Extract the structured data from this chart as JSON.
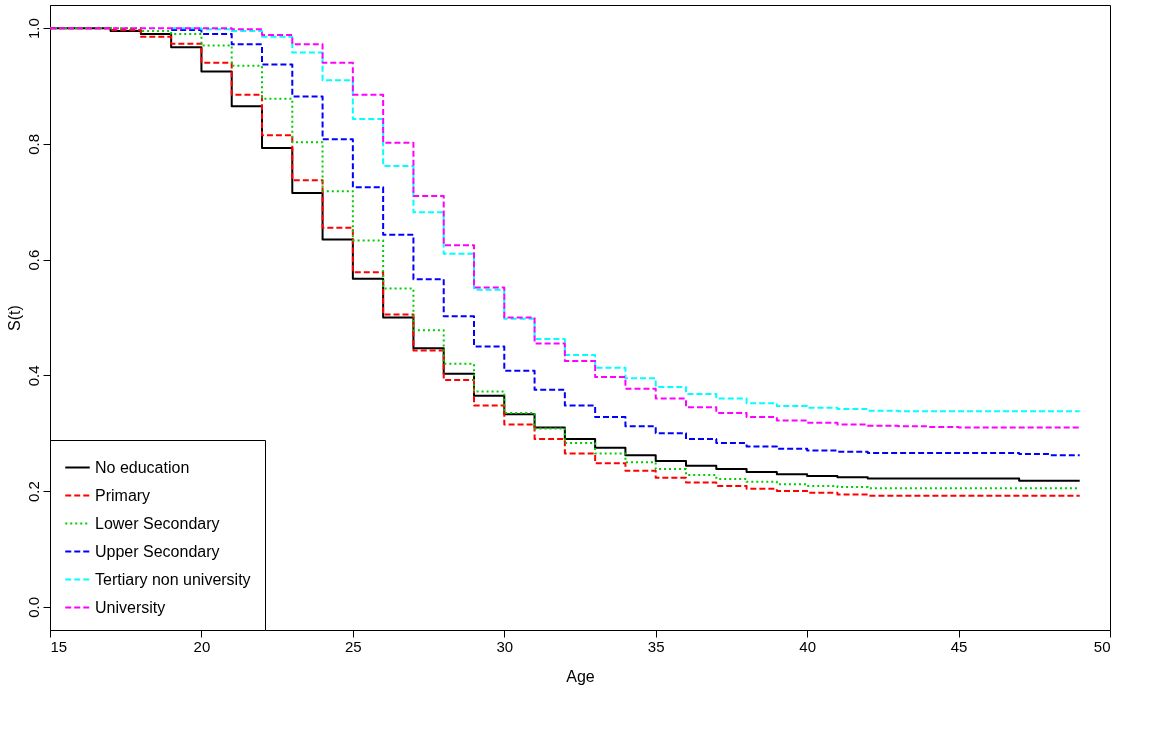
{
  "chart_data": {
    "type": "step",
    "xlabel": "Age",
    "ylabel": "S(t)",
    "x": [
      15,
      16,
      17,
      18,
      19,
      20,
      21,
      22,
      23,
      24,
      25,
      26,
      27,
      28,
      29,
      30,
      31,
      32,
      33,
      34,
      35,
      36,
      37,
      38,
      39,
      40,
      41,
      42,
      43,
      44,
      45,
      46,
      47,
      48,
      49
    ],
    "xlim": [
      15,
      50
    ],
    "xticks": [
      15,
      20,
      25,
      30,
      35,
      40,
      45,
      50
    ],
    "ylim": [
      -0.04,
      1.04
    ],
    "yticks": [
      {
        "value": 0,
        "label": "0.0"
      },
      0.2,
      0.4,
      0.6,
      0.8,
      {
        "value": 1,
        "label": "1.0"
      }
    ],
    "grid": false,
    "legend": "bottom left",
    "series": [
      {
        "name": "No education",
        "color": "#000000",
        "line_style": "solid",
        "values": [
          1,
          1,
          0.995,
          0.99,
          0.967,
          0.925,
          0.865,
          0.793,
          0.715,
          0.635,
          0.567,
          0.5,
          0.447,
          0.403,
          0.365,
          0.333,
          0.31,
          0.29,
          0.275,
          0.262,
          0.252,
          0.244,
          0.238,
          0.233,
          0.229,
          0.226,
          0.224,
          0.222,
          0.222,
          0.222,
          0.222,
          0.222,
          0.218,
          0.218,
          0.218
        ]
      },
      {
        "name": "Primary",
        "color": "#ff0000",
        "line_style": "dashed",
        "values": [
          1,
          1,
          0.997,
          0.985,
          0.973,
          0.94,
          0.885,
          0.815,
          0.737,
          0.655,
          0.578,
          0.505,
          0.443,
          0.392,
          0.348,
          0.315,
          0.29,
          0.265,
          0.248,
          0.235,
          0.223,
          0.215,
          0.209,
          0.204,
          0.2,
          0.197,
          0.194,
          0.192,
          0.192,
          0.192,
          0.192,
          0.192,
          0.192,
          0.192,
          0.192
        ]
      },
      {
        "name": "Lower Secondary",
        "color": "#00cd00",
        "line_style": "dotted",
        "values": [
          1,
          1,
          1,
          0.995,
          0.99,
          0.97,
          0.935,
          0.878,
          0.803,
          0.718,
          0.633,
          0.55,
          0.478,
          0.42,
          0.372,
          0.335,
          0.308,
          0.283,
          0.265,
          0.25,
          0.238,
          0.228,
          0.221,
          0.216,
          0.212,
          0.209,
          0.207,
          0.205,
          0.205,
          0.205,
          0.205,
          0.205,
          0.205,
          0.205,
          0.205
        ]
      },
      {
        "name": "Upper Secondary",
        "color": "#0000ff",
        "line_style": "dashed",
        "values": [
          null,
          null,
          null,
          null,
          0.997,
          0.99,
          0.972,
          0.937,
          0.882,
          0.808,
          0.725,
          0.643,
          0.566,
          0.502,
          0.45,
          0.408,
          0.375,
          0.348,
          0.328,
          0.312,
          0.3,
          0.29,
          0.283,
          0.277,
          0.273,
          0.27,
          0.268,
          0.266,
          0.266,
          0.266,
          0.266,
          0.266,
          0.264,
          0.262,
          0.262
        ]
      },
      {
        "name": "Tertiary non university",
        "color": "#00ffff",
        "line_style": "dashed",
        "values": [
          null,
          null,
          null,
          null,
          1,
          0.998,
          0.995,
          0.985,
          0.958,
          0.91,
          0.843,
          0.762,
          0.682,
          0.61,
          0.548,
          0.498,
          0.463,
          0.435,
          0.413,
          0.395,
          0.38,
          0.368,
          0.36,
          0.352,
          0.347,
          0.344,
          0.342,
          0.339,
          0.338,
          0.338,
          0.338,
          0.338,
          0.338,
          0.338,
          0.338
        ]
      },
      {
        "name": "University",
        "color": "#ff00ff",
        "line_style": "dashed",
        "values": [
          1,
          1,
          1,
          1,
          1,
          1,
          0.998,
          0.988,
          0.972,
          0.94,
          0.885,
          0.802,
          0.71,
          0.625,
          0.552,
          0.5,
          0.455,
          0.425,
          0.397,
          0.377,
          0.36,
          0.345,
          0.335,
          0.328,
          0.322,
          0.318,
          0.315,
          0.313,
          0.312,
          0.311,
          0.31,
          0.31,
          0.31,
          0.31,
          0.31
        ]
      }
    ]
  }
}
